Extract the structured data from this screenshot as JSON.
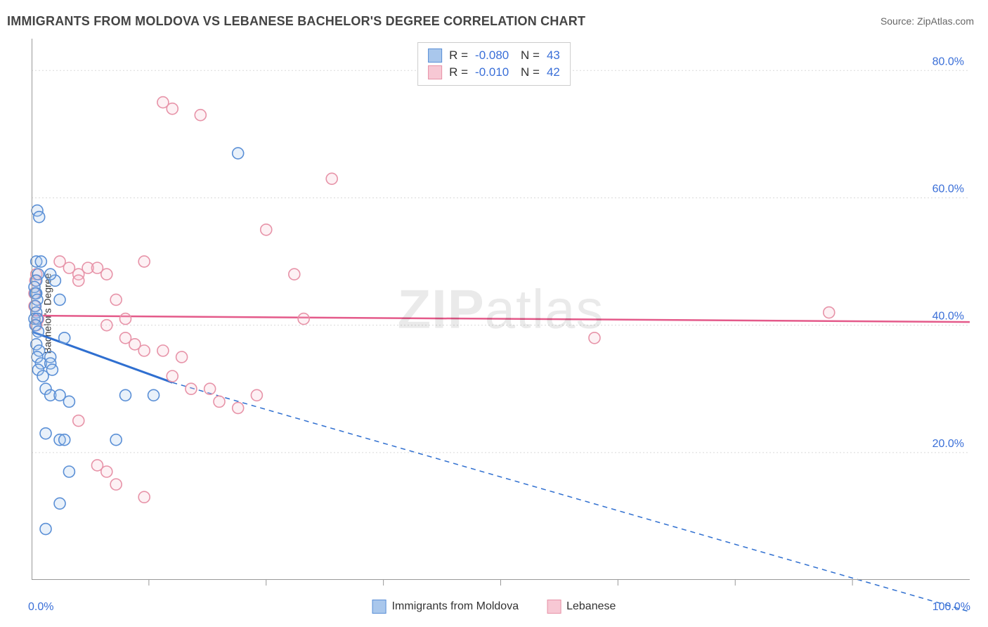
{
  "title": "IMMIGRANTS FROM MOLDOVA VS LEBANESE BACHELOR'S DEGREE CORRELATION CHART",
  "source_label": "Source: ZipAtlas.com",
  "watermark_text": "ZIPatlas",
  "chart": {
    "type": "scatter",
    "background_color": "#ffffff",
    "grid_color": "#d9d9d9",
    "axis_color": "#999999",
    "tick_label_color": "#3a6fd8",
    "y_axis_label": "Bachelor's Degree",
    "xlim": [
      0,
      100
    ],
    "ylim": [
      0,
      85
    ],
    "x_ticks_minor": [
      12.5,
      25,
      37.5,
      50,
      62.5,
      75,
      87.5
    ],
    "x_tick_labels": {
      "0": "0.0%",
      "100": "100.0%"
    },
    "y_ticks": [
      20,
      40,
      60,
      80
    ],
    "y_tick_labels": [
      "20.0%",
      "40.0%",
      "60.0%",
      "80.0%"
    ],
    "marker_radius": 8,
    "marker_stroke_width": 1.6,
    "marker_fill_opacity": 0.25,
    "series": [
      {
        "id": "moldova",
        "label": "Immigrants from Moldova",
        "color_stroke": "#5a8fd6",
        "color_fill": "#a9c7ec",
        "R": "-0.080",
        "N": "43",
        "trend": {
          "x1": 0,
          "y1": 39,
          "x2": 15,
          "y2": 31,
          "ext_x": 100,
          "ext_y": -5,
          "stroke": "#2f6fd0",
          "width": 3
        },
        "points": [
          [
            0.5,
            45
          ],
          [
            0.6,
            58
          ],
          [
            0.8,
            57
          ],
          [
            0.5,
            50
          ],
          [
            0.7,
            48
          ],
          [
            0.5,
            47
          ],
          [
            0.3,
            46
          ],
          [
            0.4,
            45
          ],
          [
            0.6,
            44
          ],
          [
            0.4,
            43
          ],
          [
            0.5,
            42
          ],
          [
            0.3,
            41
          ],
          [
            0.6,
            41
          ],
          [
            0.4,
            40
          ],
          [
            0.7,
            39
          ],
          [
            0.5,
            37
          ],
          [
            0.8,
            36
          ],
          [
            0.6,
            35
          ],
          [
            1,
            34
          ],
          [
            0.7,
            33
          ],
          [
            1.2,
            32
          ],
          [
            2,
            35
          ],
          [
            2,
            34
          ],
          [
            2.2,
            33
          ],
          [
            2.5,
            47
          ],
          [
            3,
            44
          ],
          [
            3.5,
            38
          ],
          [
            1.5,
            30
          ],
          [
            2,
            29
          ],
          [
            3,
            29
          ],
          [
            4,
            28
          ],
          [
            1.5,
            23
          ],
          [
            3,
            22
          ],
          [
            3.5,
            22
          ],
          [
            9,
            22
          ],
          [
            4,
            17
          ],
          [
            3,
            12
          ],
          [
            1.5,
            8
          ],
          [
            10,
            29
          ],
          [
            13,
            29
          ],
          [
            2,
            48
          ],
          [
            22,
            67
          ],
          [
            1,
            50
          ]
        ]
      },
      {
        "id": "lebanese",
        "label": "Lebanese",
        "color_stroke": "#e793a8",
        "color_fill": "#f7c8d4",
        "R": "-0.010",
        "N": "42",
        "trend": {
          "x1": 0,
          "y1": 41.5,
          "x2": 100,
          "y2": 40.5,
          "stroke": "#e45a8a",
          "width": 2.5
        },
        "points": [
          [
            0.5,
            40
          ],
          [
            0.3,
            43
          ],
          [
            0.4,
            47
          ],
          [
            0.5,
            48
          ],
          [
            0.3,
            45
          ],
          [
            0.7,
            41
          ],
          [
            3,
            50
          ],
          [
            4,
            49
          ],
          [
            5,
            48
          ],
          [
            5,
            47
          ],
          [
            6,
            49
          ],
          [
            7,
            49
          ],
          [
            8,
            48
          ],
          [
            9,
            44
          ],
          [
            10,
            41
          ],
          [
            12,
            50
          ],
          [
            14,
            75
          ],
          [
            15,
            74
          ],
          [
            18,
            73
          ],
          [
            25,
            55
          ],
          [
            28,
            48
          ],
          [
            29,
            41
          ],
          [
            32,
            63
          ],
          [
            8,
            40
          ],
          [
            10,
            38
          ],
          [
            11,
            37
          ],
          [
            12,
            36
          ],
          [
            14,
            36
          ],
          [
            15,
            32
          ],
          [
            16,
            35
          ],
          [
            17,
            30
          ],
          [
            19,
            30
          ],
          [
            20,
            28
          ],
          [
            22,
            27
          ],
          [
            24,
            29
          ],
          [
            5,
            25
          ],
          [
            7,
            18
          ],
          [
            8,
            17
          ],
          [
            9,
            15
          ],
          [
            12,
            13
          ],
          [
            60,
            38
          ],
          [
            85,
            42
          ]
        ]
      }
    ]
  },
  "legend_top": {
    "R_prefix": "R =",
    "N_prefix": "N ="
  }
}
